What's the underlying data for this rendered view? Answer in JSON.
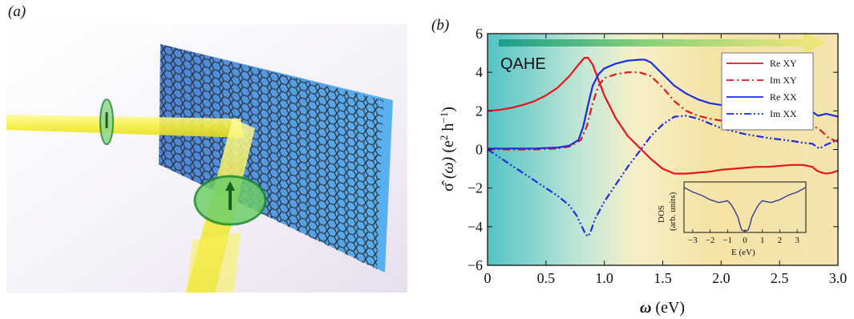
{
  "figure": {
    "panel_a_label": "(a)",
    "panel_b_label": "(b)"
  },
  "chart_data": {
    "type": "line",
    "xlabel_symbol": "ω",
    "xlabel_unit": " (eV)",
    "ylabel_symbol": "σ̂",
    "ylabel_arg": " (ω)",
    "ylabel_unit_base": " (e",
    "ylabel_unit_exp1": "2",
    "ylabel_unit_mid": " h",
    "ylabel_unit_exp2": "−1",
    "ylabel_unit_close": ")",
    "xlim": [
      0,
      3.0
    ],
    "ylim": [
      -6,
      6
    ],
    "xticks": [
      "0",
      "0.5",
      "1.0",
      "1.5",
      "2.0",
      "2.5",
      "3.0"
    ],
    "yticks": [
      "−6",
      "−4",
      "−2",
      "0",
      "2",
      "4",
      "6"
    ],
    "annotation": "QAHE",
    "legend_position": "top-right",
    "series": [
      {
        "name": "Re XY",
        "color": "#e8141a",
        "dash": "solid",
        "x": [
          0,
          0.1,
          0.2,
          0.3,
          0.4,
          0.5,
          0.6,
          0.7,
          0.78,
          0.83,
          0.86,
          0.9,
          0.95,
          1.0,
          1.1,
          1.2,
          1.3,
          1.4,
          1.5,
          1.6,
          1.7,
          1.8,
          1.9,
          2.0,
          2.1,
          2.2,
          2.3,
          2.4,
          2.5,
          2.6,
          2.7,
          2.78,
          2.82,
          2.86,
          2.9,
          2.95,
          3.0
        ],
        "y": [
          2.0,
          2.05,
          2.15,
          2.3,
          2.5,
          2.8,
          3.2,
          3.8,
          4.4,
          4.75,
          4.75,
          4.4,
          3.6,
          2.8,
          1.6,
          0.7,
          0.1,
          -0.5,
          -1.0,
          -1.25,
          -1.25,
          -1.2,
          -1.15,
          -1.05,
          -1.0,
          -0.95,
          -0.9,
          -0.9,
          -0.85,
          -0.8,
          -0.8,
          -0.9,
          -1.1,
          -1.2,
          -1.25,
          -1.2,
          -1.1
        ]
      },
      {
        "name": "Im XY",
        "color": "#e8141a",
        "dash": "dashdot",
        "x": [
          0,
          0.2,
          0.4,
          0.6,
          0.7,
          0.8,
          0.85,
          0.9,
          0.95,
          1.0,
          1.1,
          1.2,
          1.3,
          1.4,
          1.5,
          1.6,
          1.7,
          1.8,
          1.9,
          2.0,
          2.2,
          2.4,
          2.6,
          2.7,
          2.78,
          2.85,
          2.92,
          3.0
        ],
        "y": [
          0.0,
          0.0,
          0.0,
          0.05,
          0.15,
          0.5,
          1.2,
          2.4,
          3.3,
          3.7,
          3.9,
          4.0,
          4.0,
          3.8,
          3.2,
          2.5,
          2.0,
          1.75,
          1.6,
          1.5,
          1.35,
          1.25,
          1.2,
          1.2,
          1.25,
          1.0,
          0.6,
          0.4
        ]
      },
      {
        "name": "Re XX",
        "color": "#1a2de0",
        "dash": "solid",
        "x": [
          0,
          0.2,
          0.4,
          0.6,
          0.7,
          0.78,
          0.82,
          0.86,
          0.9,
          0.95,
          1.0,
          1.1,
          1.2,
          1.3,
          1.35,
          1.4,
          1.5,
          1.6,
          1.7,
          1.8,
          1.9,
          2.0,
          2.2,
          2.4,
          2.6,
          2.7,
          2.78,
          2.83,
          2.9,
          3.0
        ],
        "y": [
          0.05,
          0.05,
          0.05,
          0.1,
          0.2,
          0.5,
          1.2,
          2.3,
          3.3,
          3.9,
          4.2,
          4.45,
          4.6,
          4.65,
          4.65,
          4.5,
          3.9,
          3.3,
          2.9,
          2.6,
          2.4,
          2.3,
          2.1,
          2.0,
          1.95,
          1.95,
          1.95,
          1.75,
          1.85,
          1.7
        ]
      },
      {
        "name": "Im XX",
        "color": "#1a2de0",
        "dash": "dashdotdot",
        "x": [
          0,
          0.1,
          0.2,
          0.3,
          0.4,
          0.5,
          0.6,
          0.7,
          0.76,
          0.8,
          0.84,
          0.86,
          0.88,
          0.92,
          1.0,
          1.1,
          1.2,
          1.3,
          1.4,
          1.5,
          1.6,
          1.7,
          1.8,
          1.9,
          2.0,
          2.2,
          2.4,
          2.6,
          2.7,
          2.78,
          2.84,
          2.9,
          3.0
        ],
        "y": [
          0.0,
          -0.4,
          -0.8,
          -1.2,
          -1.6,
          -2.0,
          -2.4,
          -2.9,
          -3.4,
          -3.9,
          -4.4,
          -4.5,
          -4.3,
          -3.6,
          -2.7,
          -1.8,
          -0.9,
          -0.1,
          0.7,
          1.3,
          1.7,
          1.75,
          1.6,
          1.35,
          1.1,
          0.8,
          0.6,
          0.45,
          0.35,
          0.3,
          0.05,
          0.25,
          0.5
        ]
      }
    ],
    "inset": {
      "xlabel": "E (eV)",
      "ylabel_line1": "DOS",
      "ylabel_line2": "(arb. units)",
      "xticks": [
        "−3",
        "−2",
        "−1",
        "0",
        "1",
        "2",
        "3"
      ],
      "xlim": [
        -3.5,
        3.5
      ],
      "ylim": [
        0,
        1
      ],
      "curve": {
        "x": [
          -3.5,
          -3.0,
          -2.5,
          -2.0,
          -1.5,
          -1.2,
          -1.0,
          -0.8,
          -0.6,
          -0.4,
          -0.3,
          -0.2,
          -0.1,
          0,
          0.1,
          0.2,
          0.3,
          0.4,
          0.6,
          0.8,
          1.0,
          1.2,
          1.5,
          2.0,
          2.5,
          3.0,
          3.5
        ],
        "y": [
          0.95,
          0.85,
          0.78,
          0.68,
          0.62,
          0.64,
          0.66,
          0.58,
          0.45,
          0.3,
          0.15,
          0.03,
          0.0,
          0.0,
          0.0,
          0.03,
          0.15,
          0.3,
          0.45,
          0.58,
          0.66,
          0.64,
          0.62,
          0.68,
          0.78,
          0.85,
          0.95
        ]
      }
    }
  }
}
